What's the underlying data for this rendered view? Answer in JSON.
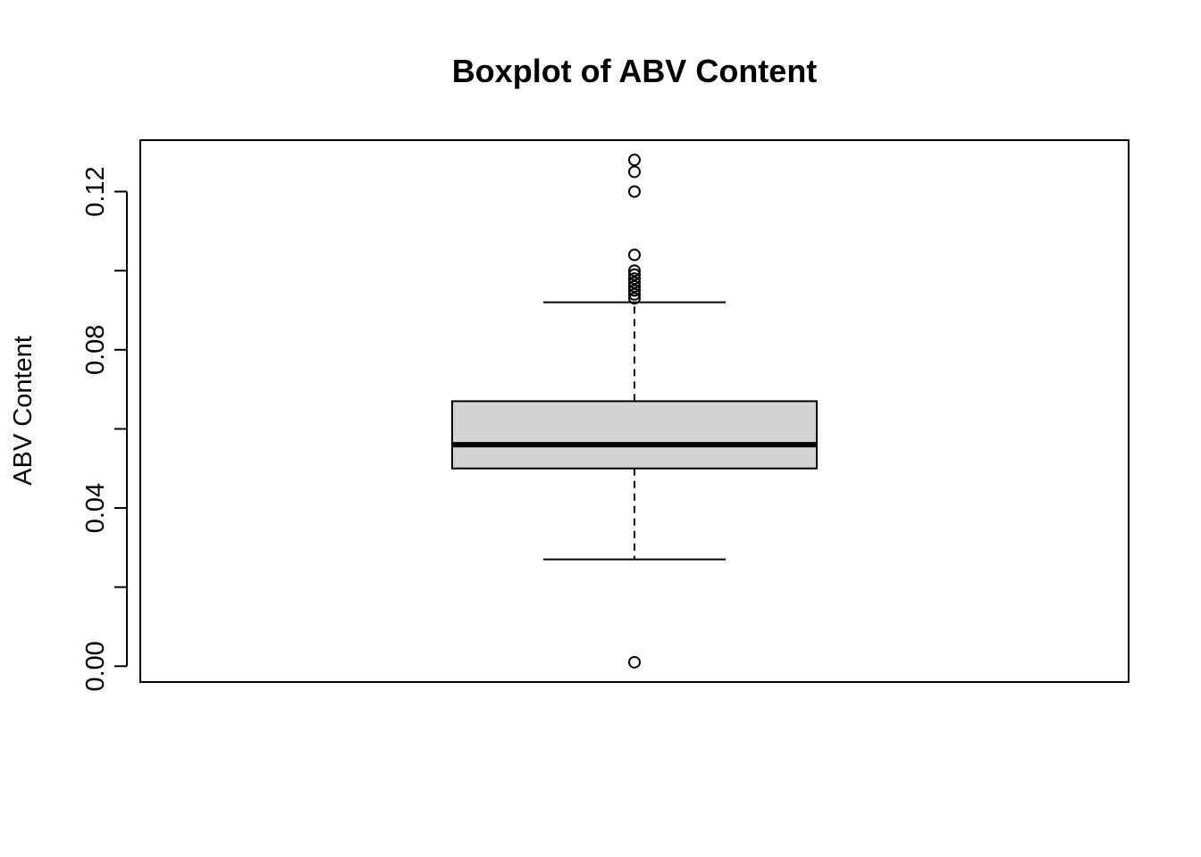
{
  "chart_data": {
    "type": "box",
    "title": "Boxplot of ABV Content",
    "xlabel": "",
    "ylabel": "ABV Content",
    "ylim": [
      -0.004,
      0.133
    ],
    "y_ticks": [
      0.0,
      0.02,
      0.04,
      0.06,
      0.08,
      0.1,
      0.12
    ],
    "y_tick_labels": [
      "0.00",
      "",
      "0.04",
      "",
      "0.08",
      "",
      "0.12"
    ],
    "grid": false,
    "box": {
      "lower_whisker": 0.027,
      "q1": 0.05,
      "median": 0.056,
      "q3": 0.067,
      "upper_whisker": 0.092,
      "outliers": [
        0.001,
        0.093,
        0.094,
        0.095,
        0.096,
        0.097,
        0.098,
        0.099,
        0.1,
        0.104,
        0.12,
        0.125,
        0.128
      ]
    },
    "colors": {
      "box_fill": "#d3d3d3",
      "line": "#000000",
      "background": "#ffffff"
    }
  }
}
